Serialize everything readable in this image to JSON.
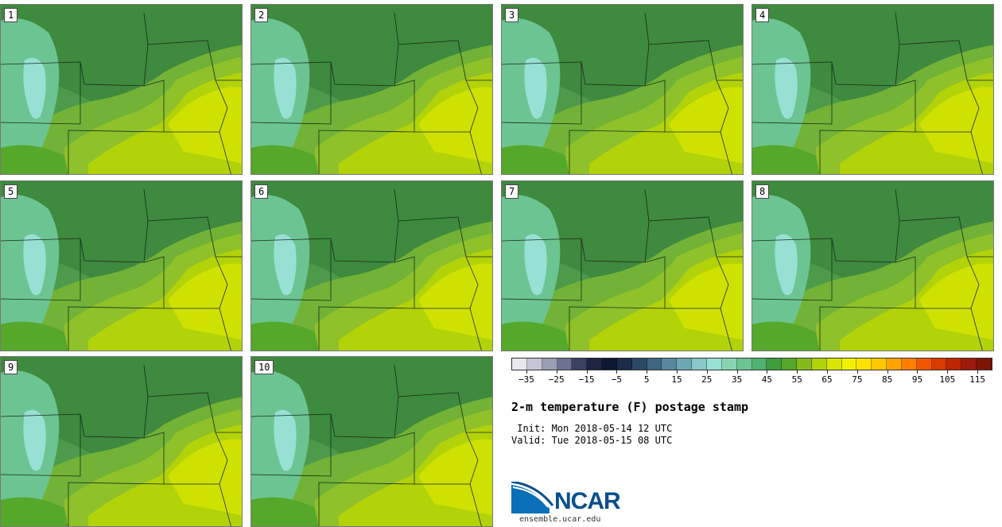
{
  "title": "2-m temperature (F) postage stamp",
  "init": " Init: Mon 2018-05-14 12 UTC",
  "valid": "Valid: Tue 2018-05-15 08 UTC",
  "logo_text": "NCAR",
  "url": "ensemble.ucar.edu",
  "panels": [
    "1",
    "2",
    "3",
    "4",
    "5",
    "6",
    "7",
    "8",
    "9",
    "10"
  ],
  "colorbar": {
    "colors": [
      "#e8e8ee",
      "#c4c6d2",
      "#9a9eb2",
      "#6c7290",
      "#3a4260",
      "#1d2540",
      "#0c1830",
      "#1a2c48",
      "#2c4a66",
      "#3e6682",
      "#55889c",
      "#6ea8b2",
      "#88c8c6",
      "#98e0d4",
      "#88d4b0",
      "#6cc492",
      "#52b272",
      "#3e9e3e",
      "#55a82a",
      "#86ba1c",
      "#b2d20a",
      "#d8e600",
      "#f2f200",
      "#ffe200",
      "#ffc800",
      "#ffa400",
      "#ff7e00",
      "#f05600",
      "#d83a00",
      "#bc2600",
      "#9e1a0c",
      "#7e1406"
    ],
    "tick_labels": [
      "−35",
      "−25",
      "−15",
      "−5",
      "5",
      "15",
      "25",
      "35",
      "45",
      "55",
      "65",
      "75",
      "85",
      "95",
      "105",
      "115"
    ],
    "min": -40,
    "max": 120,
    "interval": 5
  }
}
